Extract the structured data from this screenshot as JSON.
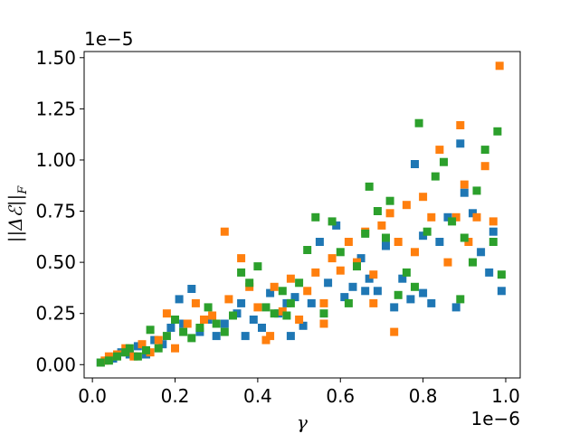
{
  "chart_data": {
    "type": "scatter",
    "title": "",
    "xlabel": "γ",
    "ylabel": "||Δℰ||F",
    "ylabel_main": "||Δℰ||",
    "ylabel_sub": "F",
    "x_offset_text": "1e−6",
    "y_offset_text": "1e−5",
    "xlim": [
      -2e-08,
      1.035e-06
    ],
    "ylim": [
      -6.5e-07,
      1.53e-05
    ],
    "xticks": [
      0,
      2e-07,
      4e-07,
      6e-07,
      8e-07,
      1e-06
    ],
    "xtick_labels": [
      "0.0",
      "0.2",
      "0.4",
      "0.6",
      "0.8",
      "1.0"
    ],
    "yticks": [
      0,
      2.5e-06,
      5e-06,
      7.5e-06,
      1e-05,
      1.25e-05,
      1.5e-05
    ],
    "ytick_labels": [
      "0.00",
      "0.25",
      "0.50",
      "0.75",
      "1.00",
      "1.25",
      "1.50"
    ],
    "grid": false,
    "legend": "none",
    "marker": "square",
    "series": [
      {
        "color": "#1f77b4",
        "points": [
          [
            2e-08,
            1e-07
          ],
          [
            5e-08,
            3e-07
          ],
          [
            7e-08,
            6e-07
          ],
          [
            9e-08,
            5e-07
          ],
          [
            1.1e-07,
            9e-07
          ],
          [
            1.3e-07,
            5e-07
          ],
          [
            1.5e-07,
            1.2e-06
          ],
          [
            1.7e-07,
            1e-06
          ],
          [
            1.9e-07,
            1.8e-06
          ],
          [
            2.1e-07,
            3.2e-06
          ],
          [
            2.2e-07,
            2e-06
          ],
          [
            2.4e-07,
            3.7e-06
          ],
          [
            2.6e-07,
            1.6e-06
          ],
          [
            2.8e-07,
            2.2e-06
          ],
          [
            3e-07,
            1.4e-06
          ],
          [
            3.2e-07,
            2e-06
          ],
          [
            3.5e-07,
            2.5e-06
          ],
          [
            3.7e-07,
            1.4e-06
          ],
          [
            3.9e-07,
            2.2e-06
          ],
          [
            4.1e-07,
            1.8e-06
          ],
          [
            4.3e-07,
            3.5e-06
          ],
          [
            4.5e-07,
            2.5e-06
          ],
          [
            4.7e-07,
            3e-06
          ],
          [
            4.9e-07,
            3.3e-06
          ],
          [
            5.1e-07,
            1.9e-06
          ],
          [
            5.3e-07,
            3e-06
          ],
          [
            5.5e-07,
            6e-06
          ],
          [
            5.7e-07,
            4e-06
          ],
          [
            5.9e-07,
            6.8e-06
          ],
          [
            6.1e-07,
            3.3e-06
          ],
          [
            6.3e-07,
            3.8e-06
          ],
          [
            6.5e-07,
            5.2e-06
          ],
          [
            6.7e-07,
            4.2e-06
          ],
          [
            6.9e-07,
            3.6e-06
          ],
          [
            7.1e-07,
            5.8e-06
          ],
          [
            7.3e-07,
            2.8e-06
          ],
          [
            7.5e-07,
            4.2e-06
          ],
          [
            7.7e-07,
            3.2e-06
          ],
          [
            7.8e-07,
            9.8e-06
          ],
          [
            8e-07,
            6.3e-06
          ],
          [
            8.2e-07,
            3e-06
          ],
          [
            8.4e-07,
            6e-06
          ],
          [
            8.6e-07,
            7.2e-06
          ],
          [
            8.8e-07,
            2.8e-06
          ],
          [
            8.9e-07,
            1.08e-05
          ],
          [
            9e-07,
            8.4e-06
          ],
          [
            9.2e-07,
            7.4e-06
          ],
          [
            9.4e-07,
            5.5e-06
          ],
          [
            9.6e-07,
            4.5e-06
          ],
          [
            9.7e-07,
            6.5e-06
          ],
          [
            9.9e-07,
            3.6e-06
          ],
          [
            8e-07,
            3.5e-06
          ],
          [
            6.6e-07,
            3.6e-06
          ],
          [
            4.8e-07,
            1.4e-06
          ],
          [
            3.6e-07,
            3e-06
          ]
        ]
      },
      {
        "color": "#ff7f0e",
        "points": [
          [
            3e-08,
            2e-07
          ],
          [
            4e-08,
            4e-07
          ],
          [
            6e-08,
            5e-07
          ],
          [
            8e-08,
            8e-07
          ],
          [
            1e-07,
            4e-07
          ],
          [
            1.2e-07,
            1e-06
          ],
          [
            1.4e-07,
            6e-07
          ],
          [
            1.6e-07,
            1.2e-06
          ],
          [
            1.8e-07,
            2.5e-06
          ],
          [
            2e-07,
            8e-07
          ],
          [
            2.3e-07,
            2e-06
          ],
          [
            2.5e-07,
            3e-06
          ],
          [
            2.7e-07,
            2.2e-06
          ],
          [
            2.9e-07,
            2.4e-06
          ],
          [
            3.2e-07,
            6.5e-06
          ],
          [
            3.3e-07,
            3.2e-06
          ],
          [
            3.6e-07,
            5.2e-06
          ],
          [
            3.8e-07,
            3.8e-06
          ],
          [
            4e-07,
            2.8e-06
          ],
          [
            4.2e-07,
            1.2e-06
          ],
          [
            4.4e-07,
            3.8e-06
          ],
          [
            4.6e-07,
            2.6e-06
          ],
          [
            4.8e-07,
            4.2e-06
          ],
          [
            5e-07,
            2.2e-06
          ],
          [
            5.2e-07,
            3.6e-06
          ],
          [
            5.4e-07,
            4.5e-06
          ],
          [
            5.6e-07,
            3e-06
          ],
          [
            5.8e-07,
            5.2e-06
          ],
          [
            6e-07,
            4.6e-06
          ],
          [
            6.2e-07,
            6e-06
          ],
          [
            6.4e-07,
            5e-06
          ],
          [
            6.6e-07,
            6.5e-06
          ],
          [
            6.8e-07,
            4.4e-06
          ],
          [
            7e-07,
            6.8e-06
          ],
          [
            7.2e-07,
            7.4e-06
          ],
          [
            7.3e-07,
            1.6e-06
          ],
          [
            7.4e-07,
            6e-06
          ],
          [
            7.6e-07,
            7.8e-06
          ],
          [
            7.8e-07,
            5.5e-06
          ],
          [
            8e-07,
            8.2e-06
          ],
          [
            8.2e-07,
            7.2e-06
          ],
          [
            8.4e-07,
            1.05e-05
          ],
          [
            8.6e-07,
            5e-06
          ],
          [
            8.8e-07,
            7.2e-06
          ],
          [
            8.9e-07,
            1.17e-05
          ],
          [
            9.1e-07,
            6e-06
          ],
          [
            9.3e-07,
            7.2e-06
          ],
          [
            9.5e-07,
            9.7e-06
          ],
          [
            9.7e-07,
            7e-06
          ],
          [
            9.85e-07,
            1.46e-05
          ],
          [
            9e-07,
            8.8e-06
          ],
          [
            6.8e-07,
            3e-06
          ],
          [
            4.3e-07,
            1.4e-06
          ],
          [
            5.6e-07,
            2e-06
          ]
        ]
      },
      {
        "color": "#2ca02c",
        "points": [
          [
            2e-08,
            1e-07
          ],
          [
            4e-08,
            2e-07
          ],
          [
            6e-08,
            4e-07
          ],
          [
            8e-08,
            6e-07
          ],
          [
            9e-08,
            8e-07
          ],
          [
            1.1e-07,
            4e-07
          ],
          [
            1.3e-07,
            7e-07
          ],
          [
            1.4e-07,
            1.7e-06
          ],
          [
            1.6e-07,
            8e-07
          ],
          [
            1.8e-07,
            1.4e-06
          ],
          [
            2e-07,
            2.2e-06
          ],
          [
            2.2e-07,
            1.6e-06
          ],
          [
            2.4e-07,
            1.3e-06
          ],
          [
            2.6e-07,
            1.8e-06
          ],
          [
            2.8e-07,
            2.8e-06
          ],
          [
            3e-07,
            2e-06
          ],
          [
            3.2e-07,
            1.6e-06
          ],
          [
            3.4e-07,
            2.4e-06
          ],
          [
            3.6e-07,
            4.5e-06
          ],
          [
            3.8e-07,
            4e-06
          ],
          [
            4e-07,
            4.8e-06
          ],
          [
            4.2e-07,
            2.8e-06
          ],
          [
            4.4e-07,
            2.5e-06
          ],
          [
            4.6e-07,
            3.6e-06
          ],
          [
            4.8e-07,
            3e-06
          ],
          [
            5e-07,
            4e-06
          ],
          [
            5.2e-07,
            5.6e-06
          ],
          [
            5.4e-07,
            7.2e-06
          ],
          [
            5.6e-07,
            2.5e-06
          ],
          [
            5.8e-07,
            7e-06
          ],
          [
            6e-07,
            5.5e-06
          ],
          [
            6.2e-07,
            3e-06
          ],
          [
            6.4e-07,
            4.8e-06
          ],
          [
            6.6e-07,
            6.4e-06
          ],
          [
            6.7e-07,
            8.7e-06
          ],
          [
            6.9e-07,
            7.5e-06
          ],
          [
            7.1e-07,
            6.2e-06
          ],
          [
            7.2e-07,
            8e-06
          ],
          [
            7.4e-07,
            3.4e-06
          ],
          [
            7.6e-07,
            4.5e-06
          ],
          [
            7.8e-07,
            3.8e-06
          ],
          [
            7.9e-07,
            1.18e-05
          ],
          [
            8.1e-07,
            6.5e-06
          ],
          [
            8.3e-07,
            9.2e-06
          ],
          [
            8.5e-07,
            9.9e-06
          ],
          [
            8.7e-07,
            7e-06
          ],
          [
            8.9e-07,
            3.2e-06
          ],
          [
            9e-07,
            6.2e-06
          ],
          [
            9.2e-07,
            5e-06
          ],
          [
            9.3e-07,
            8.5e-06
          ],
          [
            9.5e-07,
            1.05e-05
          ],
          [
            9.7e-07,
            6e-06
          ],
          [
            9.8e-07,
            1.14e-05
          ],
          [
            9.9e-07,
            4.4e-06
          ],
          [
            4.7e-07,
            2.4e-06
          ]
        ]
      }
    ]
  }
}
